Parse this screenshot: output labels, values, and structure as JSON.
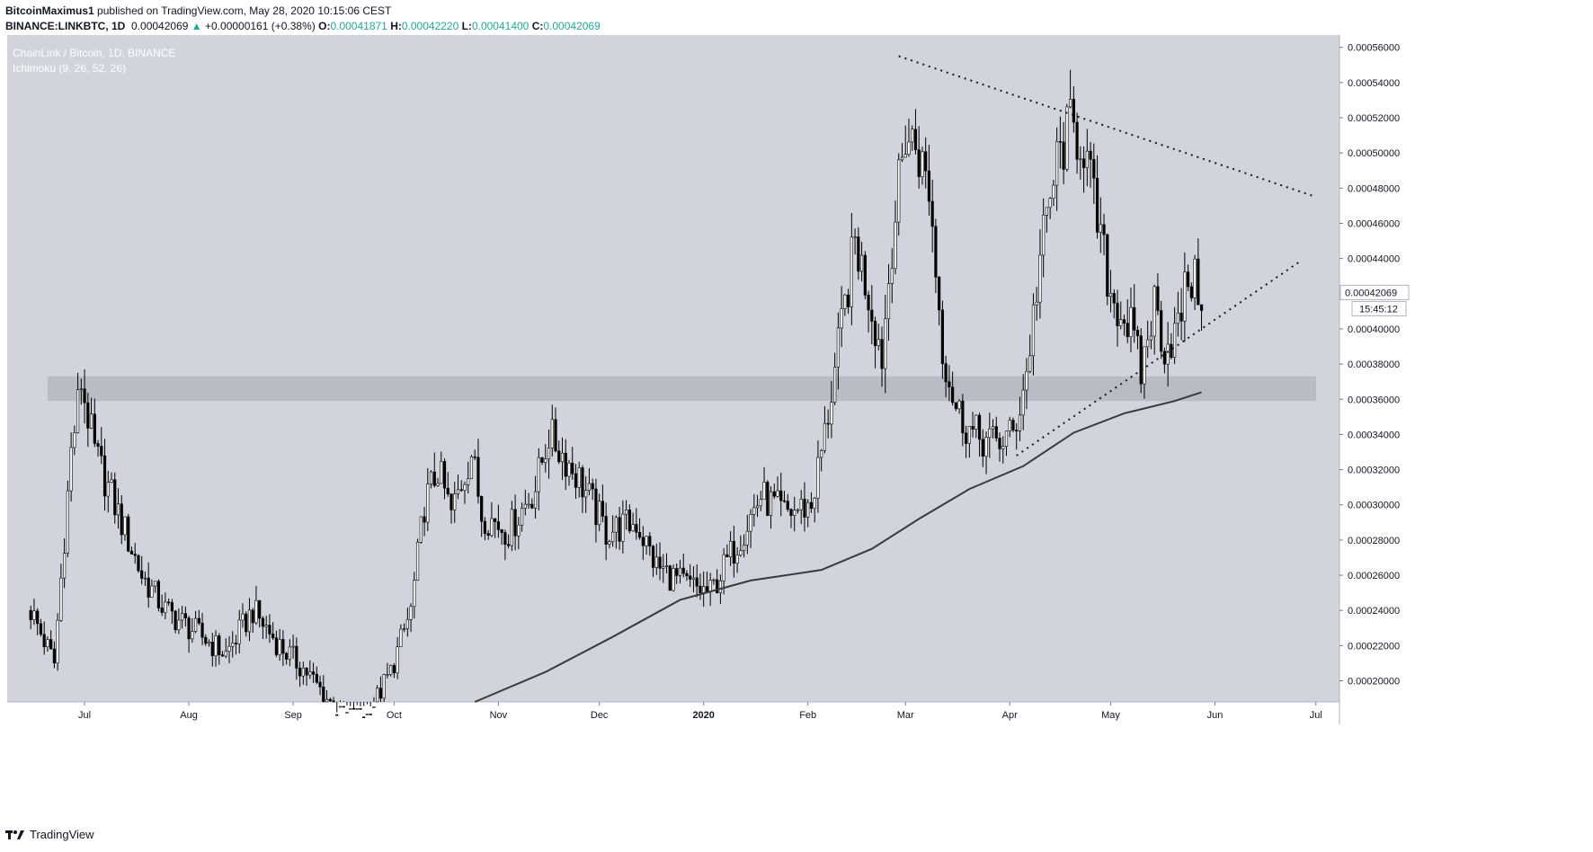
{
  "header": {
    "publisher": "BitcoinMaximus1",
    "published_text": "published on TradingView.com, May 28, 2020 10:15:06 CEST"
  },
  "ohlc": {
    "symbol": "BINANCE:LINKBTC, 1D",
    "price": "0.00042069",
    "change": "+0.00000161 (+0.38%)",
    "open_label": "O:",
    "open": "0.00041871",
    "high_label": "H:",
    "high": "0.00042220",
    "low_label": "L:",
    "low": "0.00041400",
    "close_label": "C:",
    "close": "0.00042069"
  },
  "legend": {
    "title": "ChainLink / Bitcoin, 1D, BINANCE",
    "indicator": "Ichimoku (9, 26, 52, 26)"
  },
  "footer": {
    "brand": "TradingView"
  },
  "colors": {
    "plot_bg": "#d1d4dc",
    "zone": "#b2b5be",
    "candle_up": "#ffffff",
    "candle_down": "#000000",
    "wick": "#000000",
    "ma": "#3a3a3a",
    "axis_text": "#131722"
  },
  "chart_data": {
    "type": "candlestick",
    "title": "ChainLink / Bitcoin, 1D, BINANCE",
    "y_ticks": [
      "0.00056000",
      "0.00054000",
      "0.00052000",
      "0.00050000",
      "0.00048000",
      "0.00046000",
      "0.00044000",
      "0.00042000",
      "0.00040000",
      "0.00038000",
      "0.00036000",
      "0.00034000",
      "0.00032000",
      "0.00030000",
      "0.00028000",
      "0.00026000",
      "0.00024000",
      "0.00022000",
      "0.00020000"
    ],
    "y_range": [
      0.000188,
      0.000567
    ],
    "x_ticks": [
      "Jul",
      "Aug",
      "Sep",
      "Oct",
      "Nov",
      "Dec",
      "2020",
      "Feb",
      "Mar",
      "Apr",
      "May",
      "Jun",
      "Jul"
    ],
    "x_tick_dates": [
      "2019-07-01",
      "2019-08-01",
      "2019-09-01",
      "2019-10-01",
      "2019-11-01",
      "2019-12-01",
      "2020-01-01",
      "2020-02-01",
      "2020-03-01",
      "2020-04-01",
      "2020-05-01",
      "2020-06-01",
      "2020-07-01"
    ],
    "x_range": [
      "2019-06-08",
      "2020-07-08"
    ],
    "last_price_label": "0.00042069",
    "countdown_label": "15:45:12",
    "price_path": [
      [
        "2019-06-15",
        0.00024
      ],
      [
        "2019-06-22",
        0.00021
      ],
      [
        "2019-06-27",
        0.00033
      ],
      [
        "2019-06-30",
        0.00037
      ],
      [
        "2019-07-04",
        0.00033
      ],
      [
        "2019-07-10",
        0.0003
      ],
      [
        "2019-07-18",
        0.00026
      ],
      [
        "2019-07-25",
        0.00024
      ],
      [
        "2019-08-05",
        0.000225
      ],
      [
        "2019-08-12",
        0.000215
      ],
      [
        "2019-08-20",
        0.00024
      ],
      [
        "2019-08-28",
        0.00022
      ],
      [
        "2019-09-05",
        0.000205
      ],
      [
        "2019-09-15",
        0.00018
      ],
      [
        "2019-09-23",
        0.00018
      ],
      [
        "2019-09-30",
        0.000205
      ],
      [
        "2019-10-06",
        0.00024
      ],
      [
        "2019-10-10",
        0.0003
      ],
      [
        "2019-10-14",
        0.00032
      ],
      [
        "2019-10-18",
        0.000295
      ],
      [
        "2019-10-24",
        0.00033
      ],
      [
        "2019-10-27",
        0.000295
      ],
      [
        "2019-11-04",
        0.000285
      ],
      [
        "2019-11-12",
        0.00031
      ],
      [
        "2019-11-16",
        0.00034
      ],
      [
        "2019-11-25",
        0.000315
      ],
      [
        "2019-12-03",
        0.000285
      ],
      [
        "2019-12-12",
        0.00029
      ],
      [
        "2019-12-18",
        0.000265
      ],
      [
        "2019-12-26",
        0.000255
      ],
      [
        "2020-01-03",
        0.00025
      ],
      [
        "2020-01-10",
        0.000275
      ],
      [
        "2020-01-18",
        0.000305
      ],
      [
        "2020-01-25",
        0.000295
      ],
      [
        "2020-02-02",
        0.0003
      ],
      [
        "2020-02-06",
        0.00034
      ],
      [
        "2020-02-11",
        0.0004
      ],
      [
        "2020-02-15",
        0.00045
      ],
      [
        "2020-02-19",
        0.00042
      ],
      [
        "2020-02-23",
        0.000385
      ],
      [
        "2020-02-26",
        0.00045
      ],
      [
        "2020-03-01",
        0.00051
      ],
      [
        "2020-03-04",
        0.000505
      ],
      [
        "2020-03-08",
        0.00048
      ],
      [
        "2020-03-12",
        0.00039
      ],
      [
        "2020-03-16",
        0.000355
      ],
      [
        "2020-03-21",
        0.00034
      ],
      [
        "2020-03-27",
        0.000335
      ],
      [
        "2020-04-02",
        0.00034
      ],
      [
        "2020-04-06",
        0.000375
      ],
      [
        "2020-04-10",
        0.00044
      ],
      [
        "2020-04-15",
        0.000495
      ],
      [
        "2020-04-19",
        0.000515
      ],
      [
        "2020-04-23",
        0.000505
      ],
      [
        "2020-04-27",
        0.00046
      ],
      [
        "2020-05-01",
        0.00042
      ],
      [
        "2020-05-07",
        0.0004
      ],
      [
        "2020-05-10",
        0.000375
      ],
      [
        "2020-05-14",
        0.000415
      ],
      [
        "2020-05-17",
        0.00039
      ],
      [
        "2020-05-21",
        0.0004
      ],
      [
        "2020-05-24",
        0.00043
      ],
      [
        "2020-05-28",
        0.000421
      ]
    ],
    "moving_average": [
      [
        "2019-10-25",
        0.000188
      ],
      [
        "2019-11-15",
        0.000205
      ],
      [
        "2019-12-05",
        0.000225
      ],
      [
        "2019-12-25",
        0.000246
      ],
      [
        "2020-01-15",
        0.000257
      ],
      [
        "2020-02-05",
        0.000263
      ],
      [
        "2020-02-20",
        0.000275
      ],
      [
        "2020-03-05",
        0.000292
      ],
      [
        "2020-03-20",
        0.000309
      ],
      [
        "2020-04-05",
        0.000322
      ],
      [
        "2020-04-20",
        0.000341
      ],
      [
        "2020-05-05",
        0.000352
      ],
      [
        "2020-05-20",
        0.000359
      ],
      [
        "2020-05-28",
        0.000364
      ]
    ],
    "resistance_zone": {
      "from": 0.000359,
      "to": 0.000373,
      "start": "2019-06-20",
      "end": "2020-07-01"
    },
    "upper_trendline": [
      [
        "2020-02-28",
        0.000555
      ],
      [
        "2020-07-01",
        0.000475
      ]
    ],
    "lower_trendline": [
      [
        "2020-04-03",
        0.000328
      ],
      [
        "2020-06-26",
        0.000438
      ]
    ]
  }
}
